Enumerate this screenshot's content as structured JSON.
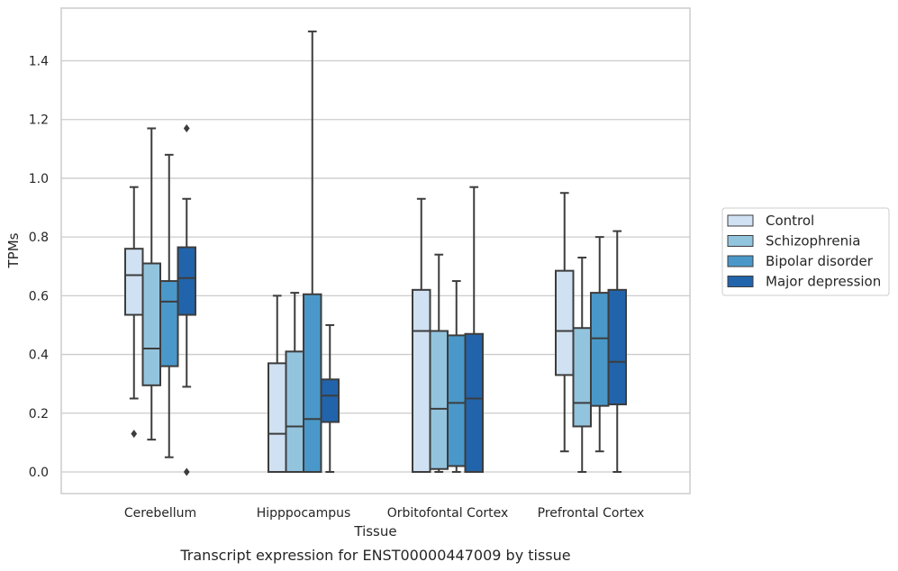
{
  "caption": "Transcript expression for ENST00000447009 by tissue",
  "chart_data": {
    "type": "boxplot",
    "xlabel": "Tissue",
    "ylabel": "TPMs",
    "ylim": [
      -0.07,
      1.58
    ],
    "yticks": [
      0.0,
      0.2,
      0.4,
      0.6,
      0.8,
      1.0,
      1.2,
      1.4
    ],
    "ytick_labels": [
      "0.0",
      "0.2",
      "0.4",
      "0.6",
      "0.8",
      "1.0",
      "1.2",
      "1.4"
    ],
    "grid": "horizontal",
    "legend_position": "right",
    "categories": [
      "Cerebellum",
      "Hipppocampus",
      "Orbitofontal Cortex",
      "Prefrontal Cortex"
    ],
    "series": [
      {
        "name": "Control",
        "color": "#cfe1f2",
        "boxes": [
          {
            "whislo": 0.25,
            "q1": 0.535,
            "med": 0.67,
            "q3": 0.76,
            "whishi": 0.97,
            "fliers": [
              0.13
            ]
          },
          {
            "whislo": 0.0,
            "q1": 0.0,
            "med": 0.13,
            "q3": 0.37,
            "whishi": 0.6,
            "fliers": []
          },
          {
            "whislo": 0.0,
            "q1": 0.0,
            "med": 0.48,
            "q3": 0.62,
            "whishi": 0.93,
            "fliers": []
          },
          {
            "whislo": 0.07,
            "q1": 0.33,
            "med": 0.48,
            "q3": 0.685,
            "whishi": 0.95,
            "fliers": []
          }
        ]
      },
      {
        "name": "Schizophrenia",
        "color": "#93c4de",
        "boxes": [
          {
            "whislo": 0.11,
            "q1": 0.295,
            "med": 0.42,
            "q3": 0.71,
            "whishi": 1.17,
            "fliers": []
          },
          {
            "whislo": 0.0,
            "q1": 0.0,
            "med": 0.155,
            "q3": 0.41,
            "whishi": 0.61,
            "fliers": []
          },
          {
            "whislo": 0.0,
            "q1": 0.01,
            "med": 0.215,
            "q3": 0.48,
            "whishi": 0.74,
            "fliers": []
          },
          {
            "whislo": 0.0,
            "q1": 0.155,
            "med": 0.235,
            "q3": 0.49,
            "whishi": 0.73,
            "fliers": []
          }
        ]
      },
      {
        "name": "Bipolar disorder",
        "color": "#4a98c9",
        "boxes": [
          {
            "whislo": 0.05,
            "q1": 0.36,
            "med": 0.58,
            "q3": 0.65,
            "whishi": 1.08,
            "fliers": []
          },
          {
            "whislo": 0.0,
            "q1": 0.0,
            "med": 0.18,
            "q3": 0.605,
            "whishi": 1.5,
            "fliers": []
          },
          {
            "whislo": 0.0,
            "q1": 0.02,
            "med": 0.235,
            "q3": 0.465,
            "whishi": 0.65,
            "fliers": []
          },
          {
            "whislo": 0.07,
            "q1": 0.225,
            "med": 0.455,
            "q3": 0.61,
            "whishi": 0.8,
            "fliers": []
          }
        ]
      },
      {
        "name": "Major depression",
        "color": "#2164ab",
        "boxes": [
          {
            "whislo": 0.29,
            "q1": 0.535,
            "med": 0.66,
            "q3": 0.765,
            "whishi": 0.93,
            "fliers": [
              1.17,
              0.0
            ]
          },
          {
            "whislo": 0.0,
            "q1": 0.17,
            "med": 0.26,
            "q3": 0.315,
            "whishi": 0.5,
            "fliers": []
          },
          {
            "whislo": 0.0,
            "q1": 0.0,
            "med": 0.25,
            "q3": 0.47,
            "whishi": 0.97,
            "fliers": []
          },
          {
            "whislo": 0.0,
            "q1": 0.23,
            "med": 0.375,
            "q3": 0.62,
            "whishi": 0.82,
            "fliers": []
          }
        ]
      }
    ]
  }
}
